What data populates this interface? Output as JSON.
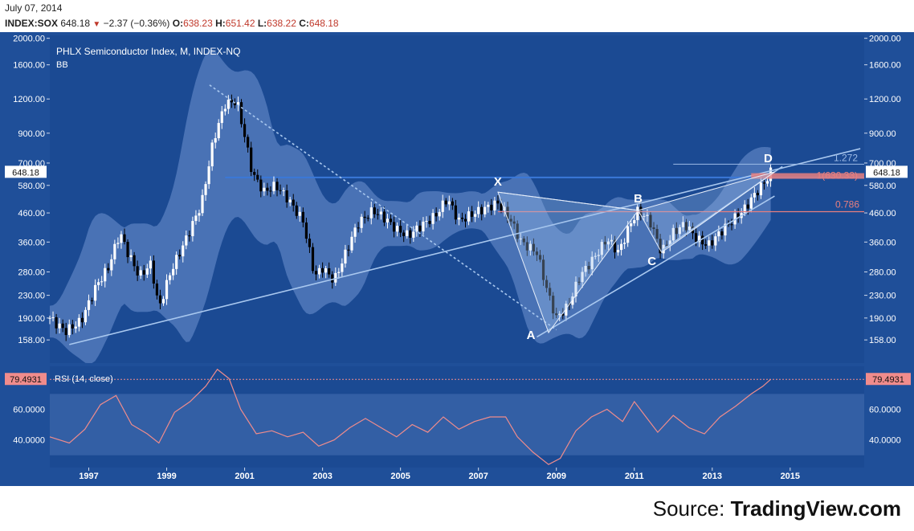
{
  "header": {
    "date": "July 07, 2014",
    "symbol": "INDEX:SOX",
    "last": "648.18",
    "change_arrow": "▼",
    "change": "−2.37 (−0.36%)",
    "o_label": "O:",
    "o_value": "638.23",
    "h_label": "H:",
    "h_value": "651.42",
    "l_label": "L:",
    "l_value": "638.22",
    "c_label": "C:",
    "c_value": "648.18"
  },
  "source": {
    "prefix": "Source:",
    "brand": "TradingView.com"
  },
  "colors": {
    "panel": "#1f4f99",
    "band": "#5a80c0",
    "up": "#ffffff",
    "down": "#000000",
    "trend": "#a9c8ef",
    "hline": "#3a78d8",
    "fib": "#e87f7f",
    "rsi": "#f08c8c",
    "frame_bg": "#ffffff"
  },
  "chart_data": [
    {
      "type": "candlestick",
      "title": "PHLX Semiconductor Index, M, INDEX-NQ",
      "indicator": "BB",
      "y_scale": "log",
      "ylim": [
        130,
        2050
      ],
      "xlim": [
        1996.0,
        2016.9
      ],
      "y_ticks": [
        2000,
        1600,
        1200,
        900,
        700,
        580,
        460,
        360,
        280,
        230,
        190,
        158
      ],
      "y_tick_labels": [
        "2000.00",
        "1600.00",
        "1200.00",
        "900.00",
        "700.00",
        "580.00",
        "460.00",
        "360.00",
        "280.00",
        "230.00",
        "190.00",
        "158.00"
      ],
      "x_ticks": [
        1997,
        1999,
        2001,
        2003,
        2005,
        2007,
        2009,
        2011,
        2013,
        2015
      ],
      "x_tick_labels": [
        "1997",
        "1999",
        "2001",
        "2003",
        "2005",
        "2007",
        "2009",
        "2011",
        "2013",
        "2015"
      ],
      "last_price_label": "648.18",
      "horizontal_line": 620,
      "price_path": [
        {
          "x": 1996.0,
          "y": 190
        },
        {
          "x": 1996.4,
          "y": 170
        },
        {
          "x": 1996.8,
          "y": 185
        },
        {
          "x": 1997.2,
          "y": 250
        },
        {
          "x": 1997.5,
          "y": 290
        },
        {
          "x": 1997.8,
          "y": 390
        },
        {
          "x": 1998.0,
          "y": 330
        },
        {
          "x": 1998.3,
          "y": 270
        },
        {
          "x": 1998.6,
          "y": 300
        },
        {
          "x": 1998.8,
          "y": 205
        },
        {
          "x": 1999.1,
          "y": 280
        },
        {
          "x": 1999.5,
          "y": 370
        },
        {
          "x": 1999.9,
          "y": 500
        },
        {
          "x": 2000.2,
          "y": 850
        },
        {
          "x": 2000.5,
          "y": 1150
        },
        {
          "x": 2000.8,
          "y": 1180
        },
        {
          "x": 2001.0,
          "y": 880
        },
        {
          "x": 2001.2,
          "y": 640
        },
        {
          "x": 2001.5,
          "y": 550
        },
        {
          "x": 2001.8,
          "y": 580
        },
        {
          "x": 2002.1,
          "y": 520
        },
        {
          "x": 2002.5,
          "y": 430
        },
        {
          "x": 2002.8,
          "y": 270
        },
        {
          "x": 2003.0,
          "y": 290
        },
        {
          "x": 2003.3,
          "y": 260
        },
        {
          "x": 2003.6,
          "y": 330
        },
        {
          "x": 2003.9,
          "y": 420
        },
        {
          "x": 2004.3,
          "y": 470
        },
        {
          "x": 2004.6,
          "y": 440
        },
        {
          "x": 2004.9,
          "y": 400
        },
        {
          "x": 2005.2,
          "y": 380
        },
        {
          "x": 2005.5,
          "y": 410
        },
        {
          "x": 2005.9,
          "y": 450
        },
        {
          "x": 2006.2,
          "y": 520
        },
        {
          "x": 2006.5,
          "y": 430
        },
        {
          "x": 2006.9,
          "y": 460
        },
        {
          "x": 2007.2,
          "y": 480
        },
        {
          "x": 2007.5,
          "y": 500
        },
        {
          "x": 2007.8,
          "y": 440
        },
        {
          "x": 2008.1,
          "y": 360
        },
        {
          "x": 2008.5,
          "y": 330
        },
        {
          "x": 2008.8,
          "y": 230
        },
        {
          "x": 2009.0,
          "y": 190
        },
        {
          "x": 2009.3,
          "y": 210
        },
        {
          "x": 2009.6,
          "y": 270
        },
        {
          "x": 2010.0,
          "y": 320
        },
        {
          "x": 2010.3,
          "y": 370
        },
        {
          "x": 2010.6,
          "y": 330
        },
        {
          "x": 2010.9,
          "y": 420
        },
        {
          "x": 2011.1,
          "y": 470
        },
        {
          "x": 2011.4,
          "y": 430
        },
        {
          "x": 2011.7,
          "y": 330
        },
        {
          "x": 2012.0,
          "y": 390
        },
        {
          "x": 2012.3,
          "y": 420
        },
        {
          "x": 2012.6,
          "y": 370
        },
        {
          "x": 2012.9,
          "y": 350
        },
        {
          "x": 2013.2,
          "y": 390
        },
        {
          "x": 2013.5,
          "y": 430
        },
        {
          "x": 2013.8,
          "y": 470
        },
        {
          "x": 2014.1,
          "y": 540
        },
        {
          "x": 2014.4,
          "y": 610
        },
        {
          "x": 2014.5,
          "y": 648
        }
      ],
      "trend_lines": [
        {
          "from": [
            1996.5,
            152
          ],
          "to": [
            2016.8,
            790
          ],
          "style": "solid"
        },
        {
          "from": [
            2000.1,
            1350
          ],
          "to": [
            2009.0,
            172
          ],
          "style": "dashed"
        },
        {
          "from": [
            2008.5,
            162
          ],
          "to": [
            2014.6,
            530
          ],
          "style": "solid"
        },
        {
          "from": [
            2011.7,
            335
          ],
          "to": [
            2014.8,
            680
          ],
          "style": "solid"
        }
      ],
      "harmonic": {
        "points": [
          {
            "label": "X",
            "x": 2007.5,
            "y": 548
          },
          {
            "label": "A",
            "x": 2008.8,
            "y": 168
          },
          {
            "label": "B",
            "x": 2011.1,
            "y": 470
          },
          {
            "label": "C",
            "x": 2011.7,
            "y": 330
          },
          {
            "label": "D",
            "x": 2014.6,
            "y": 650
          }
        ]
      },
      "fib_levels": [
        {
          "label": "0.786",
          "value": 465
        },
        {
          "label": "1.272",
          "value": 648
        },
        {
          "label": "1(630.33)",
          "value": 630
        }
      ]
    },
    {
      "type": "line",
      "title": "RSI (14, close)",
      "ylim": [
        22,
        88
      ],
      "y_ticks": [
        60,
        40
      ],
      "y_tick_labels": [
        "60.0000",
        "40.0000"
      ],
      "band": [
        30,
        70
      ],
      "last_value_label": "79.4931",
      "last_value": 79.4931,
      "series": [
        {
          "name": "RSI",
          "points": [
            {
              "x": 1996.0,
              "y": 42
            },
            {
              "x": 1996.5,
              "y": 38
            },
            {
              "x": 1996.9,
              "y": 47
            },
            {
              "x": 1997.3,
              "y": 63
            },
            {
              "x": 1997.7,
              "y": 69
            },
            {
              "x": 1998.1,
              "y": 50
            },
            {
              "x": 1998.5,
              "y": 44
            },
            {
              "x": 1998.8,
              "y": 38
            },
            {
              "x": 1999.2,
              "y": 58
            },
            {
              "x": 1999.6,
              "y": 65
            },
            {
              "x": 2000.0,
              "y": 75
            },
            {
              "x": 2000.3,
              "y": 86
            },
            {
              "x": 2000.6,
              "y": 80
            },
            {
              "x": 2000.9,
              "y": 60
            },
            {
              "x": 2001.3,
              "y": 44
            },
            {
              "x": 2001.7,
              "y": 46
            },
            {
              "x": 2002.1,
              "y": 42
            },
            {
              "x": 2002.5,
              "y": 45
            },
            {
              "x": 2002.9,
              "y": 36
            },
            {
              "x": 2003.3,
              "y": 40
            },
            {
              "x": 2003.7,
              "y": 48
            },
            {
              "x": 2004.1,
              "y": 54
            },
            {
              "x": 2004.5,
              "y": 48
            },
            {
              "x": 2004.9,
              "y": 42
            },
            {
              "x": 2005.3,
              "y": 50
            },
            {
              "x": 2005.7,
              "y": 45
            },
            {
              "x": 2006.1,
              "y": 55
            },
            {
              "x": 2006.5,
              "y": 47
            },
            {
              "x": 2006.9,
              "y": 52
            },
            {
              "x": 2007.3,
              "y": 55
            },
            {
              "x": 2007.7,
              "y": 55
            },
            {
              "x": 2008.0,
              "y": 42
            },
            {
              "x": 2008.4,
              "y": 32
            },
            {
              "x": 2008.8,
              "y": 24
            },
            {
              "x": 2009.1,
              "y": 28
            },
            {
              "x": 2009.5,
              "y": 46
            },
            {
              "x": 2009.9,
              "y": 55
            },
            {
              "x": 2010.3,
              "y": 60
            },
            {
              "x": 2010.7,
              "y": 52
            },
            {
              "x": 2011.0,
              "y": 65
            },
            {
              "x": 2011.3,
              "y": 55
            },
            {
              "x": 2011.6,
              "y": 45
            },
            {
              "x": 2012.0,
              "y": 56
            },
            {
              "x": 2012.4,
              "y": 48
            },
            {
              "x": 2012.8,
              "y": 44
            },
            {
              "x": 2013.2,
              "y": 55
            },
            {
              "x": 2013.6,
              "y": 62
            },
            {
              "x": 2014.0,
              "y": 70
            },
            {
              "x": 2014.3,
              "y": 75
            },
            {
              "x": 2014.5,
              "y": 79.49
            }
          ]
        }
      ]
    }
  ]
}
